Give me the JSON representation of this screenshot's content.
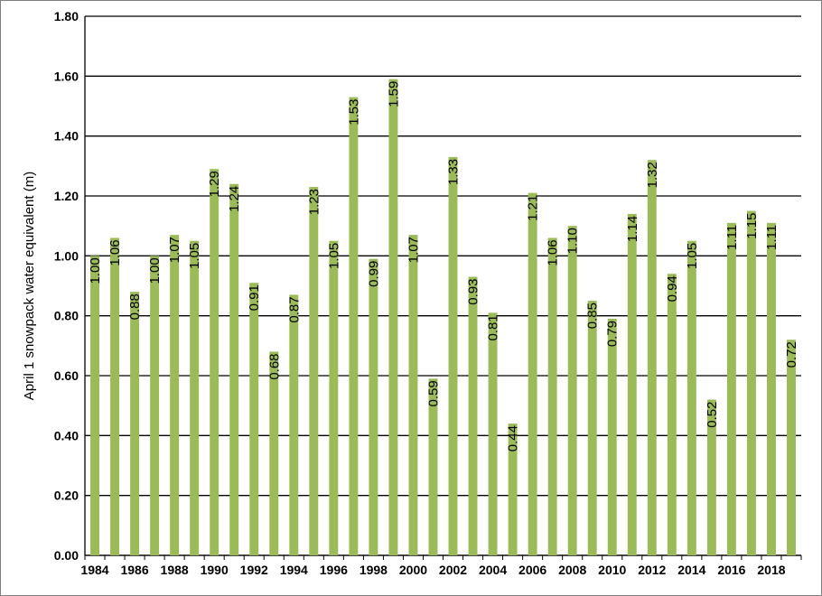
{
  "chart_data": {
    "type": "bar",
    "ylabel": "April 1 snowpack water equivalent (m)",
    "xlabel": "",
    "ylim": [
      0,
      1.8
    ],
    "ytick_step": 0.2,
    "grid": true,
    "bar_color": "#9bbb59",
    "categories": [
      1984,
      1985,
      1986,
      1987,
      1988,
      1989,
      1990,
      1991,
      1992,
      1993,
      1994,
      1995,
      1996,
      1997,
      1998,
      1999,
      2000,
      2001,
      2002,
      2003,
      2004,
      2005,
      2006,
      2007,
      2008,
      2009,
      2010,
      2011,
      2012,
      2013,
      2014,
      2015,
      2016,
      2017,
      2018,
      2019
    ],
    "values": [
      1.0,
      1.06,
      0.88,
      1.0,
      1.07,
      1.05,
      1.29,
      1.24,
      0.91,
      0.68,
      0.87,
      1.23,
      1.05,
      1.53,
      0.99,
      1.59,
      1.07,
      0.59,
      1.33,
      0.93,
      0.81,
      0.44,
      1.21,
      1.06,
      1.1,
      0.85,
      0.79,
      1.14,
      1.32,
      0.94,
      1.05,
      0.52,
      1.11,
      1.15,
      1.11,
      0.72
    ],
    "data_labels": [
      "1.00",
      "1.06",
      "0.88",
      "1.00",
      "1.07",
      "1.05",
      "1.29",
      "1.24",
      "0.91",
      "0.68",
      "0.87",
      "1.23",
      "1.05",
      "1.53",
      "0.99",
      "1.59",
      "1.07",
      "0.59",
      "1.33",
      "0.93",
      "0.81",
      "0.44",
      "1.21",
      "1.06",
      "1.10",
      "0.85",
      "0.79",
      "1.14",
      "1.32",
      "0.94",
      "1.05",
      "0.52",
      "1.11",
      "1.15",
      "1.11",
      "0.72"
    ],
    "x_tick_labels": [
      "1984",
      "1986",
      "1988",
      "1990",
      "1992",
      "1994",
      "1996",
      "1998",
      "2000",
      "2002",
      "2004",
      "2006",
      "2008",
      "2010",
      "2012",
      "2014",
      "2016",
      "2018"
    ],
    "y_tick_labels": [
      "0.00",
      "0.20",
      "0.40",
      "0.60",
      "0.80",
      "1.00",
      "1.20",
      "1.40",
      "1.60",
      "1.80"
    ]
  }
}
